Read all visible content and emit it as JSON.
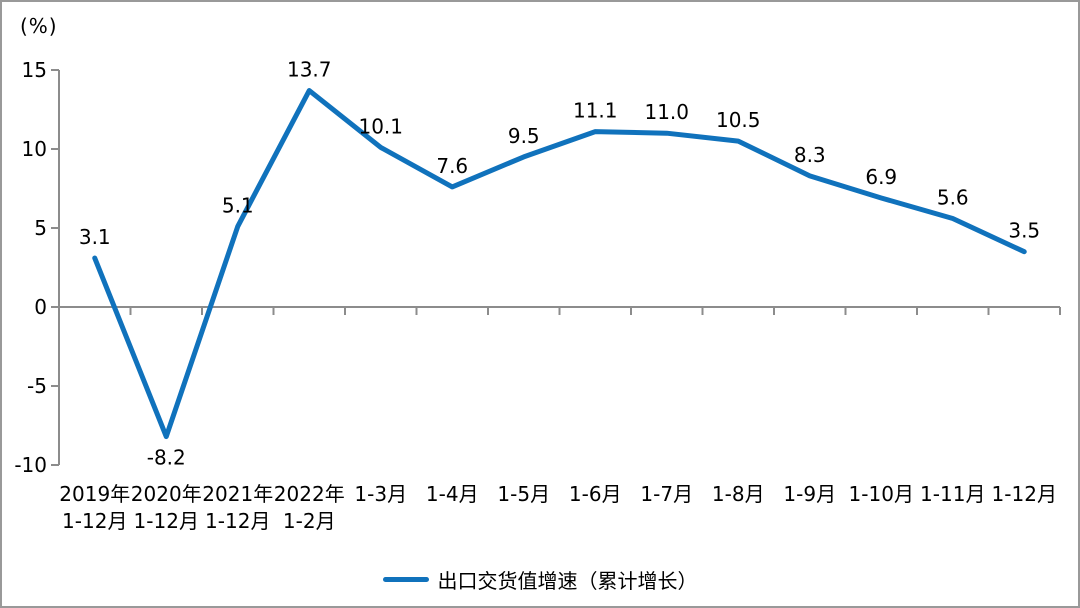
{
  "chart_data": {
    "type": "line",
    "title": "",
    "ylabel": "(%)",
    "xlabel": "",
    "categories": [
      "2019年\n1-12月",
      "2020年\n1-12月",
      "2021年\n1-12月",
      "2022年\n1-2月",
      "1-3月",
      "1-4月",
      "1-5月",
      "1-6月",
      "1-7月",
      "1-8月",
      "1-9月",
      "1-10月",
      "1-11月",
      "1-12月"
    ],
    "values": [
      3.1,
      -8.2,
      5.1,
      13.7,
      10.1,
      7.6,
      9.5,
      11.1,
      11.0,
      10.5,
      8.3,
      6.9,
      5.6,
      3.5
    ],
    "value_label_decimals": 1,
    "y_ticks": [
      15,
      10,
      5,
      0,
      -5,
      -10
    ],
    "ylim": [
      -10,
      15
    ],
    "grid": false,
    "legend": "出口交货值增速（累计增长）",
    "legend_position": "bottom",
    "colors": {
      "line": "#1072BC",
      "axis": "#8C8C8C",
      "text": "#000000",
      "frame_border": "#999999"
    }
  }
}
